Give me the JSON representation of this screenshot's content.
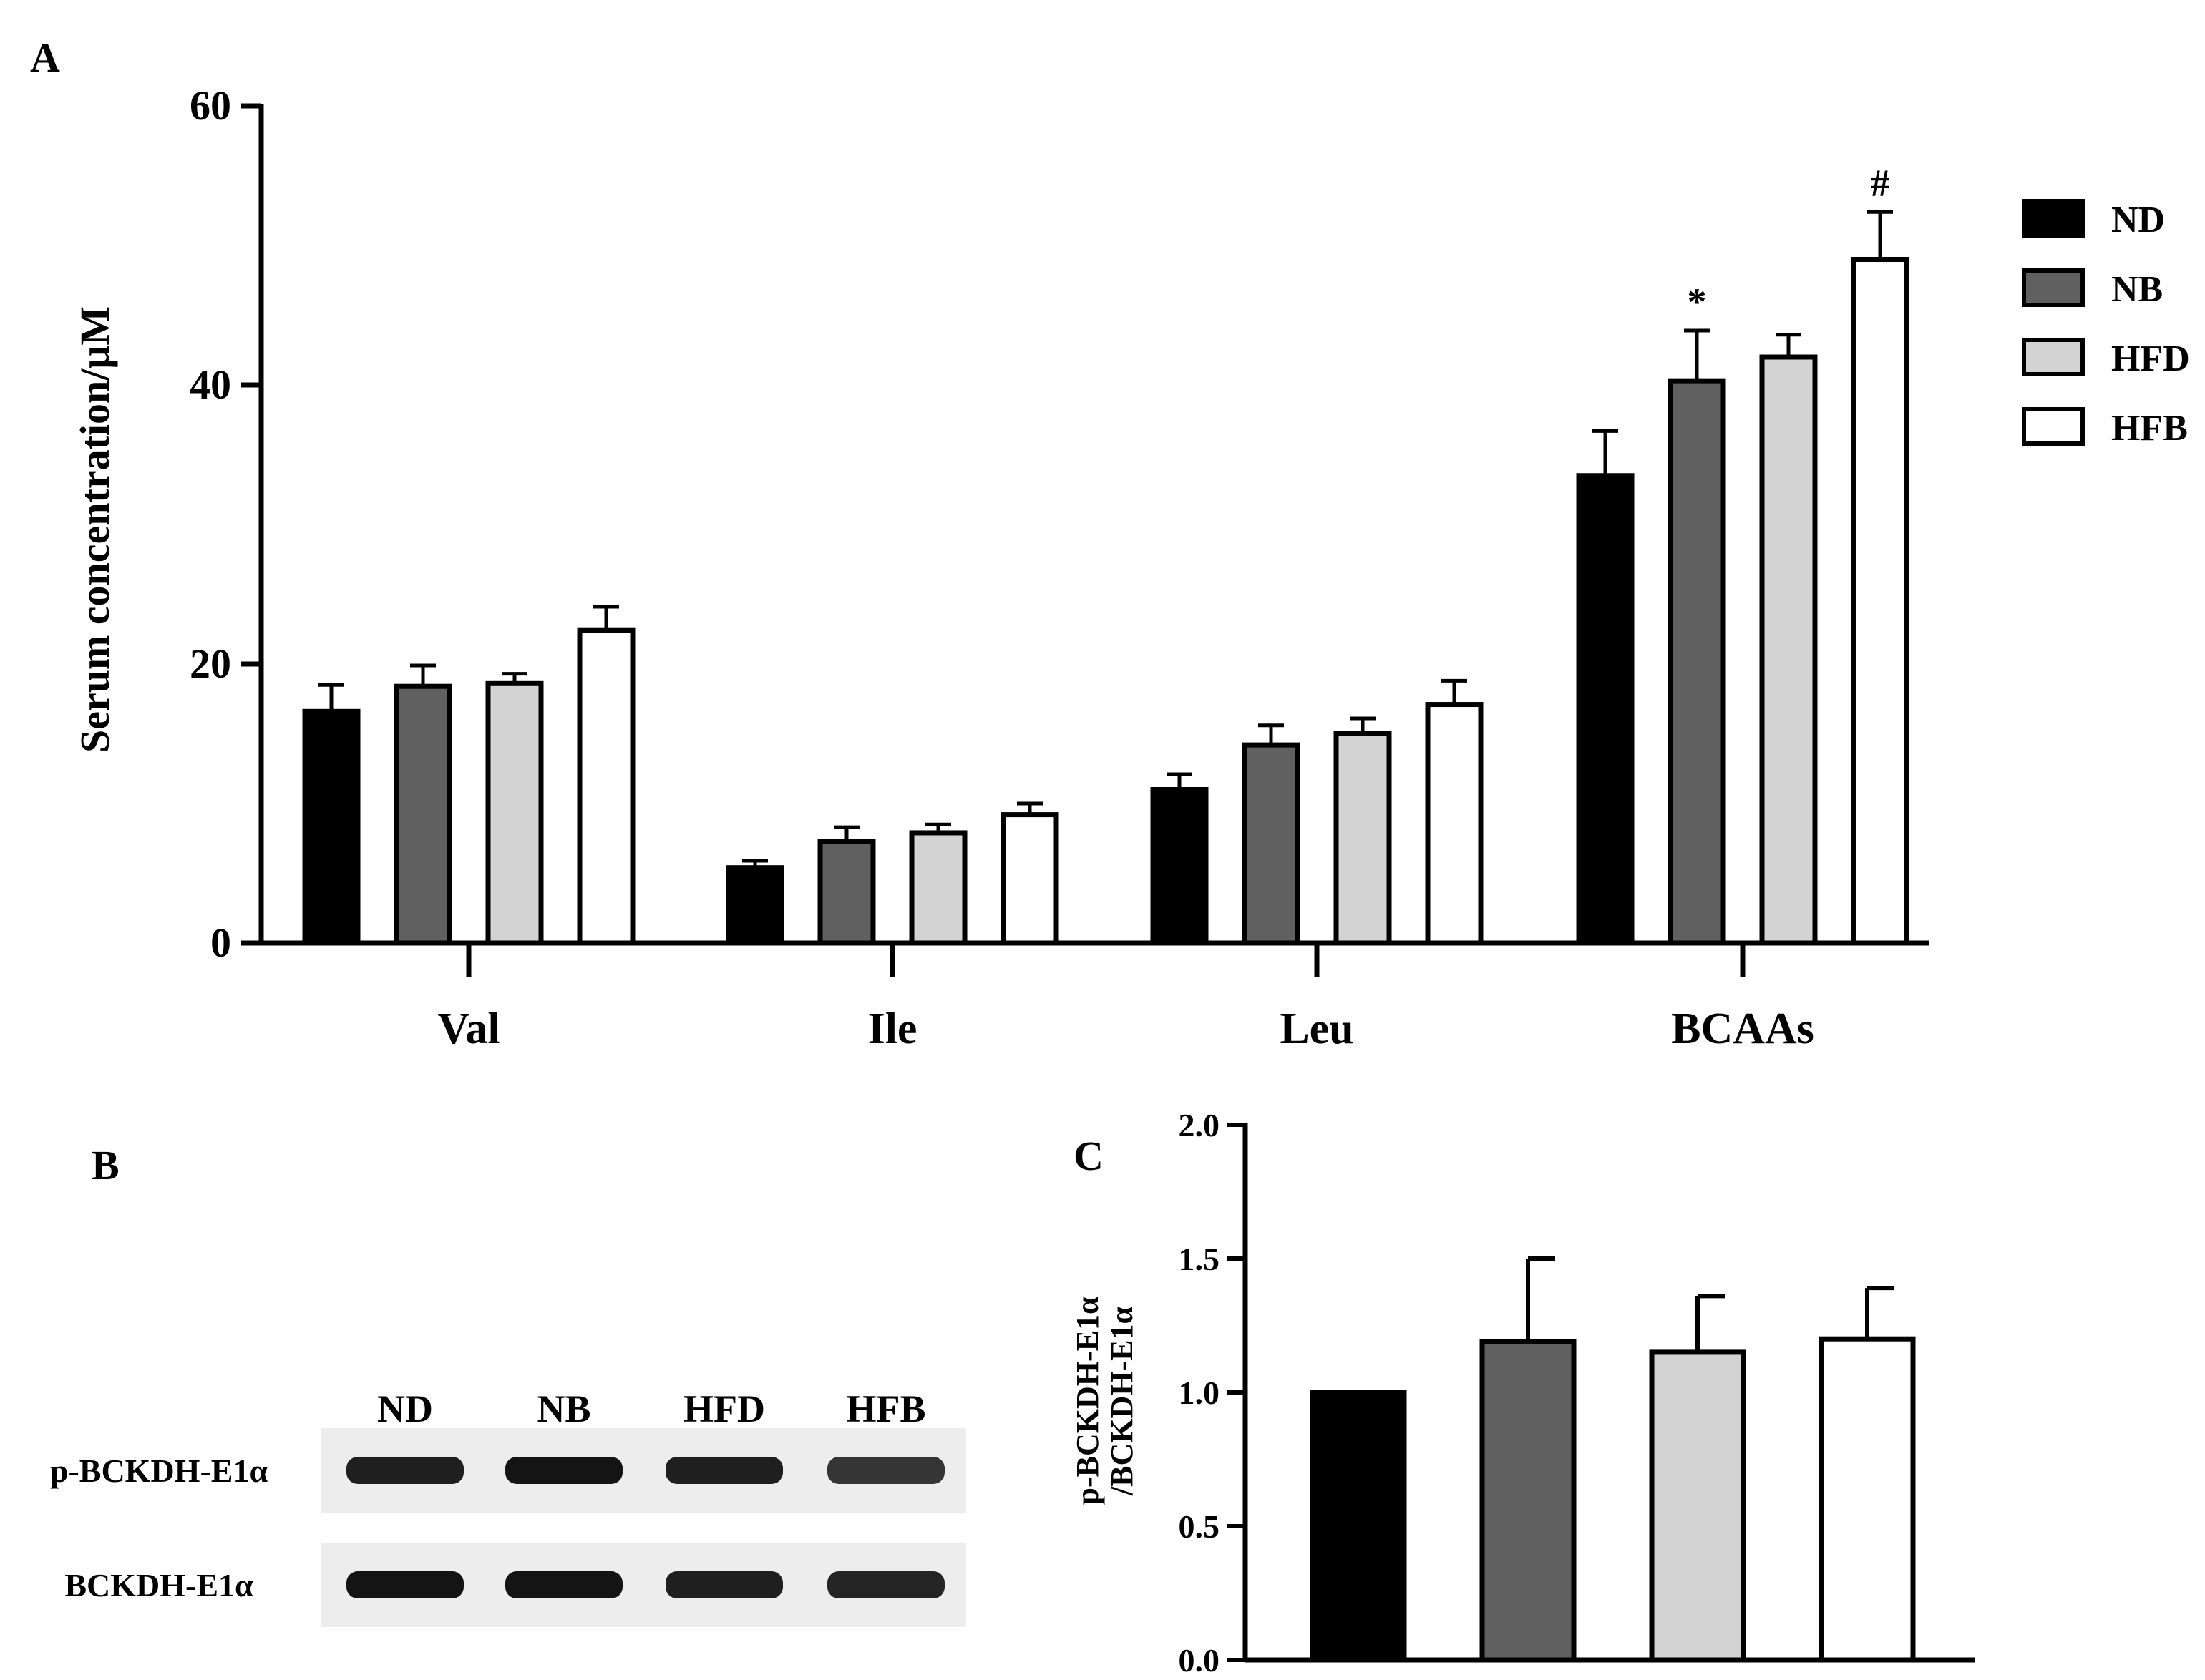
{
  "colors": {
    "ND": "#000000",
    "NB": "#606060",
    "HFD": "#d3d3d3",
    "HFB": "#ffffff",
    "outline": "#000000",
    "blot_bg": "#ededed",
    "band": "#141414"
  },
  "panel_labels": {
    "a": "A",
    "b": "B",
    "c": "C"
  },
  "legend": [
    "ND",
    "NB",
    "HFD",
    "HFB"
  ],
  "chart_data": [
    {
      "id": "A",
      "type": "bar",
      "title": "",
      "xlabel": "",
      "ylabel": "Serum concentration/μM",
      "categories": [
        "Val",
        "Ile",
        "Leu",
        "BCAAs"
      ],
      "series": [
        {
          "name": "ND",
          "values": [
            16.6,
            5.4,
            11.0,
            33.5
          ],
          "errors": [
            1.9,
            0.5,
            1.1,
            3.2
          ]
        },
        {
          "name": "NB",
          "values": [
            18.4,
            7.3,
            14.2,
            40.3
          ],
          "errors": [
            1.5,
            1.0,
            1.4,
            3.6
          ]
        },
        {
          "name": "HFD",
          "values": [
            18.6,
            7.9,
            15.0,
            42.0
          ],
          "errors": [
            0.7,
            0.6,
            1.1,
            1.6
          ]
        },
        {
          "name": "HFB",
          "values": [
            22.4,
            9.2,
            17.1,
            49.0
          ],
          "errors": [
            1.7,
            0.8,
            1.7,
            3.4
          ]
        }
      ],
      "annotations": [
        {
          "category": "BCAAs",
          "series": "NB",
          "text": "*"
        },
        {
          "category": "BCAAs",
          "series": "HFB",
          "text": "#"
        }
      ],
      "ylim": [
        0,
        60
      ],
      "yticks": [
        0,
        20,
        40,
        60
      ],
      "grid": false,
      "legend_position": "right"
    },
    {
      "id": "C",
      "type": "bar",
      "title": "",
      "xlabel": "",
      "ylabel_line1": "p-BCKDH-E1α",
      "ylabel_line2": "/BCKDH-E1α",
      "categories": [
        "ND",
        "NB",
        "HFD",
        "HFB"
      ],
      "values": [
        1.0,
        1.19,
        1.15,
        1.2
      ],
      "errors": [
        0.0,
        0.31,
        0.21,
        0.19
      ],
      "ylim": [
        0,
        2.0
      ],
      "yticks": [
        "0.0",
        "0.5",
        "1.0",
        "1.5",
        "2.0"
      ],
      "grid": false
    }
  ],
  "blot": {
    "lanes": [
      "ND",
      "NB",
      "HFD",
      "HFB"
    ],
    "rows": [
      {
        "label": "p-BCKDH-E1α",
        "intensity": [
          0.95,
          1.0,
          0.95,
          0.85
        ]
      },
      {
        "label": "BCKDH-E1α",
        "intensity": [
          1.0,
          1.0,
          0.95,
          0.92
        ]
      }
    ]
  }
}
